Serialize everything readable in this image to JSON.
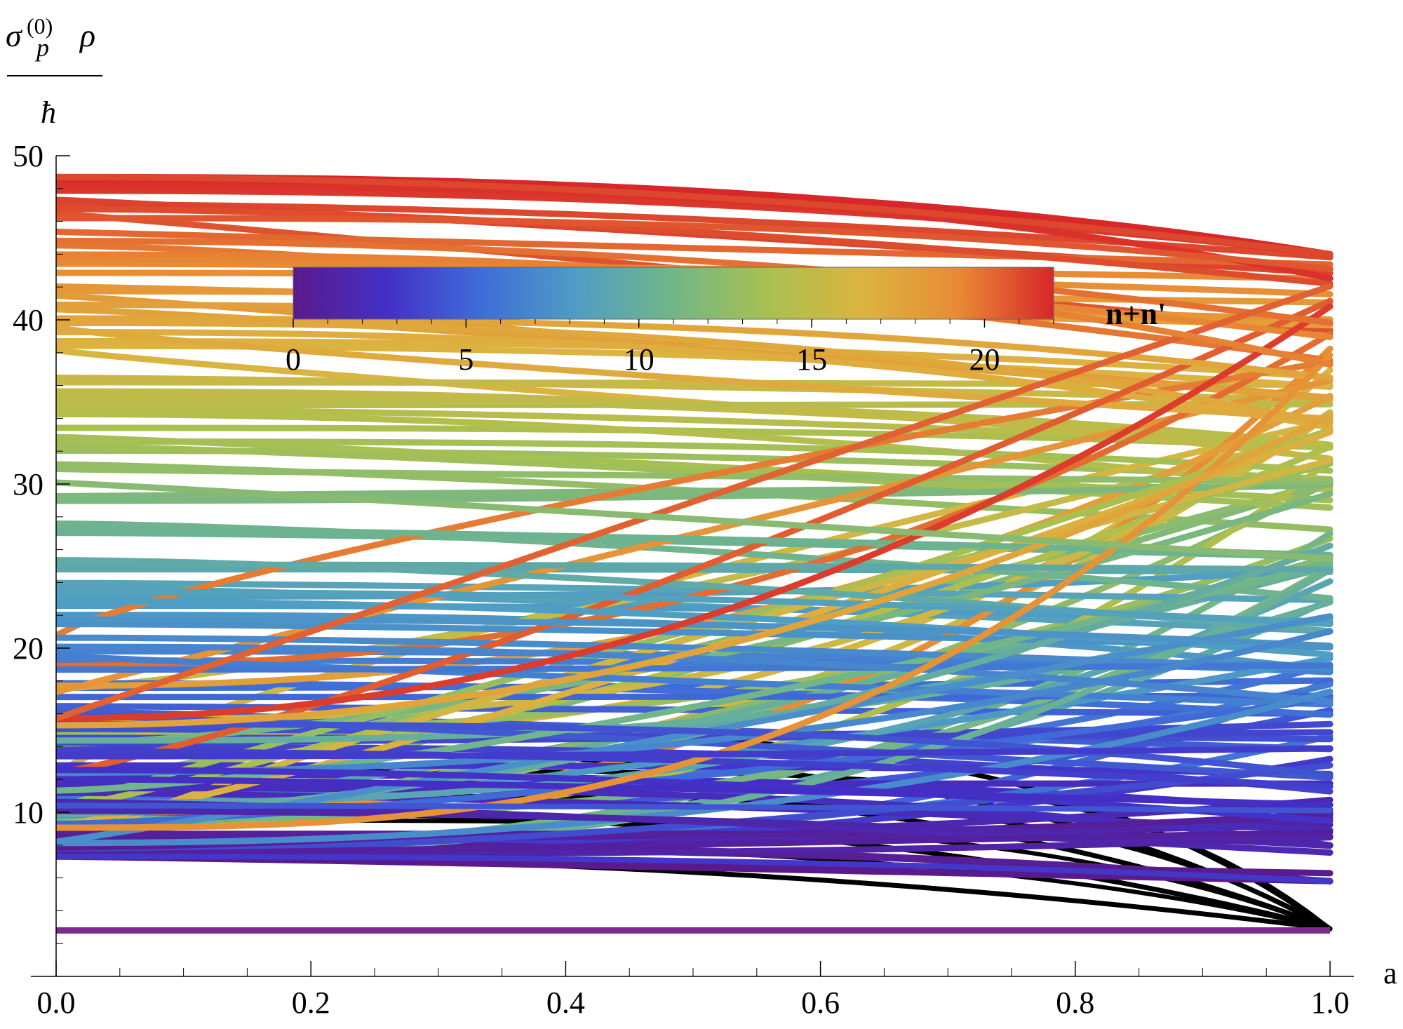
{
  "chart_data": {
    "type": "line",
    "xlabel": "a",
    "ylabel": {
      "sigma": "σ",
      "sub": "p",
      "sup": "(0)",
      "rho": "ρ",
      "denominator": "ħ"
    },
    "xlim": [
      0,
      1
    ],
    "ylim": [
      0,
      50
    ],
    "x_ticks": [
      "0.0",
      "0.2",
      "0.4",
      "0.6",
      "0.8",
      "1.0"
    ],
    "y_ticks": [
      "10",
      "20",
      "30",
      "40",
      "50"
    ],
    "colorbar": {
      "label": "n+n'",
      "range": [
        0,
        22
      ],
      "ticks": [
        "0",
        "5",
        "10",
        "15",
        "20"
      ],
      "colormap": [
        "#5b1a8c",
        "#4330c8",
        "#3f6ed8",
        "#4f9ec4",
        "#72b688",
        "#a9c050",
        "#dcb440",
        "#e88a34",
        "#d8272a"
      ]
    },
    "base_line": {
      "n_sum": 0,
      "y": 2.8,
      "color": "#7b2a8f"
    },
    "series_families": [
      {
        "description": "black decaying curves",
        "color": "#000000",
        "y_start": [
          7.3,
          10.0,
          11.8,
          13.5,
          15.0
        ],
        "y_end": 2.9
      },
      {
        "description": "colored rising curves",
        "colormap_index": "n+n'",
        "y_start_range": [
          7.3,
          48.7
        ],
        "y_end_range": [
          5.8,
          44.0
        ]
      }
    ],
    "grid": false,
    "legend": "top-center colorbar"
  }
}
